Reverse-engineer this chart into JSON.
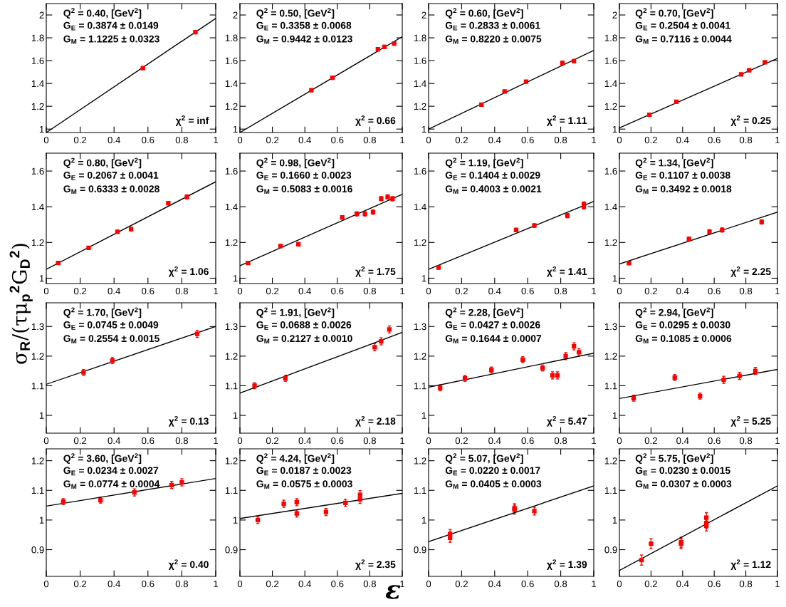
{
  "chart_data": [
    {
      "type": "scatter",
      "ylim": [
        0.97,
        2.1
      ],
      "yticks": [
        1,
        1.2,
        1.4,
        1.6,
        1.8,
        2
      ],
      "xlim": [
        0,
        1
      ],
      "xticks": [
        0,
        0.2,
        0.4,
        0.6,
        0.8,
        1
      ],
      "grid": false,
      "annotations": [
        "Q$^{2}$ = 0.40, [GeV$^{2}$]",
        "G$_{E}$ = 0.3874 ± 0.0149",
        "G$_{M}$ = 1.1225 ± 0.0323",
        "χ$^{2}$ = inf"
      ],
      "series": [
        {
          "marker": "square",
          "color": "#ff0000",
          "x": [
            0.57,
            0.88
          ],
          "values": [
            1.535,
            1.85
          ],
          "errors": [
            0.01,
            0.015
          ]
        },
        {
          "type": "line",
          "color": "#000000",
          "x": [
            0,
            1
          ],
          "values": [
            0.97,
            1.97
          ]
        }
      ]
    },
    {
      "type": "scatter",
      "ylim": [
        0.97,
        2.1
      ],
      "yticks": [
        1,
        1.2,
        1.4,
        1.6,
        1.8,
        2
      ],
      "xlim": [
        0,
        1
      ],
      "xticks": [
        0,
        0.2,
        0.4,
        0.6,
        0.8,
        1
      ],
      "grid": false,
      "annotations": [
        "Q$^{2}$ = 0.50, [GeV$^{2}$]",
        "G$_{E}$ = 0.3358 ± 0.0068",
        "G$_{M}$ = 0.9442 ± 0.0123",
        "χ$^{2}$ = 0.66"
      ],
      "series": [
        {
          "marker": "square",
          "color": "#ff0000",
          "x": [
            0.44,
            0.57,
            0.85,
            0.89,
            0.95
          ],
          "values": [
            1.34,
            1.45,
            1.7,
            1.72,
            1.75
          ],
          "errors": [
            0.01,
            0.01,
            0.015,
            0.015,
            0.015
          ]
        },
        {
          "type": "line",
          "color": "#000000",
          "x": [
            0,
            1
          ],
          "values": [
            0.97,
            1.81
          ]
        }
      ]
    },
    {
      "type": "scatter",
      "ylim": [
        0.97,
        2.1
      ],
      "yticks": [
        1,
        1.2,
        1.4,
        1.6,
        1.8,
        2
      ],
      "xlim": [
        0,
        1
      ],
      "xticks": [
        0,
        0.2,
        0.4,
        0.6,
        0.8,
        1
      ],
      "grid": false,
      "annotations": [
        "Q$^{2}$ = 0.60, [GeV$^{2}$]",
        "G$_{E}$ = 0.2833 ± 0.0061",
        "G$_{M}$ = 0.8220 ± 0.0075",
        "χ$^{2}$ = 1.11"
      ],
      "series": [
        {
          "marker": "square",
          "color": "#ff0000",
          "x": [
            0.32,
            0.46,
            0.59,
            0.81,
            0.88
          ],
          "values": [
            1.215,
            1.33,
            1.415,
            1.58,
            1.595
          ],
          "errors": [
            0.01,
            0.01,
            0.01,
            0.015,
            0.015
          ]
        },
        {
          "type": "line",
          "color": "#000000",
          "x": [
            0,
            1
          ],
          "values": [
            1.0,
            1.69
          ]
        }
      ]
    },
    {
      "type": "scatter",
      "ylim": [
        0.97,
        2.1
      ],
      "yticks": [
        1,
        1.2,
        1.4,
        1.6,
        1.8,
        2
      ],
      "xlim": [
        0,
        1
      ],
      "xticks": [
        0,
        0.2,
        0.4,
        0.6,
        0.8,
        1
      ],
      "grid": false,
      "annotations": [
        "Q$^{2}$ = 0.70, [GeV$^{2}$]",
        "G$_{E}$ = 0.2504 ± 0.0041",
        "G$_{M}$ = 0.7116 ± 0.0044",
        "χ$^{2}$ = 0.25"
      ],
      "series": [
        {
          "marker": "square",
          "color": "#ff0000",
          "x": [
            0.19,
            0.36,
            0.77,
            0.82,
            0.92
          ],
          "values": [
            1.125,
            1.24,
            1.48,
            1.515,
            1.585
          ],
          "errors": [
            0.01,
            0.01,
            0.01,
            0.01,
            0.01
          ]
        },
        {
          "type": "line",
          "color": "#000000",
          "x": [
            0,
            1
          ],
          "values": [
            1.01,
            1.62
          ]
        }
      ]
    },
    {
      "type": "scatter",
      "ylim": [
        0.97,
        1.7
      ],
      "yticks": [
        1,
        1.2,
        1.4,
        1.6
      ],
      "xlim": [
        0,
        1
      ],
      "xticks": [
        0,
        0.2,
        0.4,
        0.6,
        0.8,
        1
      ],
      "grid": false,
      "annotations": [
        "Q$^{2}$ = 0.80, [GeV$^{2}$]",
        "G$_{E}$ = 0.2067 ± 0.0041",
        "G$_{M}$ = 0.6333 ± 0.0028",
        "χ$^{2}$ = 1.06"
      ],
      "series": [
        {
          "marker": "square",
          "color": "#ff0000",
          "x": [
            0.07,
            0.25,
            0.42,
            0.5,
            0.72,
            0.83
          ],
          "values": [
            1.085,
            1.17,
            1.26,
            1.275,
            1.42,
            1.455
          ],
          "errors": [
            0.008,
            0.008,
            0.008,
            0.01,
            0.01,
            0.012
          ]
        },
        {
          "type": "line",
          "color": "#000000",
          "x": [
            0,
            1
          ],
          "values": [
            1.05,
            1.54
          ]
        }
      ]
    },
    {
      "type": "scatter",
      "ylim": [
        0.97,
        1.7
      ],
      "yticks": [
        1,
        1.2,
        1.4,
        1.6
      ],
      "xlim": [
        0,
        1
      ],
      "xticks": [
        0,
        0.2,
        0.4,
        0.6,
        0.8,
        1
      ],
      "grid": false,
      "annotations": [
        "Q$^{2}$ = 0.98, [GeV$^{2}$]",
        "G$_{E}$ = 0.1660 ± 0.0023",
        "G$_{M}$ = 0.5083 ± 0.0016",
        "χ$^{2}$ = 1.75"
      ],
      "series": [
        {
          "marker": "square",
          "color": "#ff0000",
          "x": [
            0.05,
            0.25,
            0.36,
            0.63,
            0.72,
            0.77,
            0.82,
            0.87,
            0.91,
            0.94
          ],
          "values": [
            1.085,
            1.18,
            1.19,
            1.34,
            1.36,
            1.36,
            1.37,
            1.445,
            1.455,
            1.445
          ],
          "errors": [
            0.008,
            0.008,
            0.01,
            0.01,
            0.012,
            0.012,
            0.012,
            0.012,
            0.012,
            0.012
          ]
        },
        {
          "type": "line",
          "color": "#000000",
          "x": [
            0,
            1
          ],
          "values": [
            1.07,
            1.47
          ]
        }
      ]
    },
    {
      "type": "scatter",
      "ylim": [
        0.97,
        1.7
      ],
      "yticks": [
        1,
        1.2,
        1.4,
        1.6
      ],
      "xlim": [
        0,
        1
      ],
      "xticks": [
        0,
        0.2,
        0.4,
        0.6,
        0.8,
        1
      ],
      "grid": false,
      "annotations": [
        "Q$^{2}$ = 1.19, [GeV$^{2}$]",
        "G$_{E}$ = 0.1404 ± 0.0029",
        "G$_{M}$ = 0.4003 ± 0.0021",
        "χ$^{2}$ = 1.41"
      ],
      "series": [
        {
          "marker": "square",
          "color": "#ff0000",
          "x": [
            0.06,
            0.53,
            0.64,
            0.84,
            0.94,
            0.94
          ],
          "values": [
            1.06,
            1.27,
            1.295,
            1.35,
            1.4,
            1.415
          ],
          "errors": [
            0.01,
            0.01,
            0.01,
            0.012,
            0.012,
            0.012
          ]
        },
        {
          "type": "line",
          "color": "#000000",
          "x": [
            0,
            1
          ],
          "values": [
            1.05,
            1.43
          ]
        }
      ]
    },
    {
      "type": "scatter",
      "ylim": [
        0.97,
        1.7
      ],
      "yticks": [
        1,
        1.2,
        1.4,
        1.6
      ],
      "xlim": [
        0,
        1
      ],
      "xticks": [
        0,
        0.2,
        0.4,
        0.6,
        0.8,
        1
      ],
      "grid": false,
      "annotations": [
        "Q$^{2}$ = 1.34, [GeV$^{2}$]",
        "G$_{E}$ = 0.1107 ± 0.0038",
        "G$_{M}$ = 0.3492 ± 0.0018",
        "χ$^{2}$ = 2.25"
      ],
      "series": [
        {
          "marker": "square",
          "color": "#ff0000",
          "x": [
            0.06,
            0.44,
            0.57,
            0.65,
            0.9
          ],
          "values": [
            1.085,
            1.22,
            1.26,
            1.27,
            1.315
          ],
          "errors": [
            0.01,
            0.01,
            0.012,
            0.012,
            0.012
          ]
        },
        {
          "type": "line",
          "color": "#000000",
          "x": [
            0,
            1
          ],
          "values": [
            1.08,
            1.37
          ]
        }
      ]
    },
    {
      "type": "scatter",
      "ylim": [
        0.94,
        1.38
      ],
      "yticks": [
        1,
        1.1,
        1.2,
        1.3
      ],
      "xlim": [
        0,
        1
      ],
      "xticks": [
        0,
        0.2,
        0.4,
        0.6,
        0.8,
        1
      ],
      "grid": false,
      "ylabel": "σ$_{R}$/(τμ$_{p}$$^{2}$G$_{D}$$^{2}$)",
      "annotations": [
        "Q$^{2}$ = 1.70, [GeV$^{2}$]",
        "G$_{E}$ = 0.0745 ± 0.0049",
        "G$_{M}$ = 0.2554 ± 0.0015",
        "χ$^{2}$ = 0.13"
      ],
      "series": [
        {
          "marker": "square",
          "color": "#ff0000",
          "x": [
            0.22,
            0.39,
            0.89
          ],
          "values": [
            1.145,
            1.185,
            1.275
          ],
          "errors": [
            0.01,
            0.01,
            0.012
          ]
        },
        {
          "type": "line",
          "color": "#000000",
          "x": [
            0,
            1
          ],
          "values": [
            1.105,
            1.3
          ]
        }
      ]
    },
    {
      "type": "scatter",
      "ylim": [
        0.94,
        1.38
      ],
      "yticks": [
        1,
        1.1,
        1.2,
        1.3
      ],
      "xlim": [
        0,
        1
      ],
      "xticks": [
        0,
        0.2,
        0.4,
        0.6,
        0.8,
        1
      ],
      "grid": false,
      "annotations": [
        "Q$^{2}$ = 1.91, [GeV$^{2}$]",
        "G$_{E}$ = 0.0688 ± 0.0026",
        "G$_{M}$ = 0.2127 ± 0.0010",
        "χ$^{2}$ = 2.18"
      ],
      "series": [
        {
          "marker": "square",
          "color": "#ff0000",
          "x": [
            0.09,
            0.28,
            0.83,
            0.87,
            0.92
          ],
          "values": [
            1.1,
            1.125,
            1.23,
            1.25,
            1.29
          ],
          "errors": [
            0.01,
            0.01,
            0.012,
            0.012,
            0.012
          ]
        },
        {
          "type": "line",
          "color": "#000000",
          "x": [
            0,
            1
          ],
          "values": [
            1.075,
            1.28
          ]
        }
      ]
    },
    {
      "type": "scatter",
      "ylim": [
        0.94,
        1.38
      ],
      "yticks": [
        1,
        1.1,
        1.2,
        1.3
      ],
      "xlim": [
        0,
        1
      ],
      "xticks": [
        0,
        0.2,
        0.4,
        0.6,
        0.8,
        1
      ],
      "grid": false,
      "annotations": [
        "Q$^{2}$ = 2.28, [GeV$^{2}$]",
        "G$_{E}$ = 0.0427 ± 0.0026",
        "G$_{M}$ = 0.1644 ± 0.0007",
        "χ$^{2}$ = 5.47"
      ],
      "series": [
        {
          "marker": "square",
          "color": "#ff0000",
          "x": [
            0.07,
            0.22,
            0.38,
            0.57,
            0.69,
            0.75,
            0.78,
            0.83,
            0.88,
            0.91
          ],
          "values": [
            1.093,
            1.125,
            1.153,
            1.188,
            1.16,
            1.135,
            1.135,
            1.2,
            1.233,
            1.213
          ],
          "errors": [
            0.01,
            0.01,
            0.01,
            0.01,
            0.01,
            0.012,
            0.012,
            0.012,
            0.012,
            0.012
          ]
        },
        {
          "type": "line",
          "color": "#000000",
          "x": [
            0,
            1
          ],
          "values": [
            1.095,
            1.21
          ]
        }
      ]
    },
    {
      "type": "scatter",
      "ylim": [
        0.94,
        1.38
      ],
      "yticks": [
        1,
        1.1,
        1.2,
        1.3
      ],
      "xlim": [
        0,
        1
      ],
      "xticks": [
        0,
        0.2,
        0.4,
        0.6,
        0.8,
        1
      ],
      "grid": false,
      "annotations": [
        "Q$^{2}$ = 2.94, [GeV$^{2}$]",
        "G$_{E}$ = 0.0295 ± 0.0030",
        "G$_{M}$ = 0.1085 ± 0.0006",
        "χ$^{2}$ = 5.25"
      ],
      "series": [
        {
          "marker": "square",
          "color": "#ff0000",
          "x": [
            0.09,
            0.35,
            0.51,
            0.66,
            0.76,
            0.86
          ],
          "values": [
            1.058,
            1.128,
            1.065,
            1.12,
            1.133,
            1.15
          ],
          "errors": [
            0.01,
            0.01,
            0.01,
            0.012,
            0.012,
            0.012
          ]
        },
        {
          "type": "line",
          "color": "#000000",
          "x": [
            0,
            1
          ],
          "values": [
            1.057,
            1.155
          ]
        }
      ]
    },
    {
      "type": "scatter",
      "ylim": [
        0.81,
        1.24
      ],
      "yticks": [
        0.9,
        1,
        1.1,
        1.2
      ],
      "xlim": [
        0,
        1
      ],
      "xticks": [
        0,
        0.2,
        0.4,
        0.6,
        0.8,
        1
      ],
      "grid": false,
      "annotations": [
        "Q$^{2}$ = 3.60, [GeV$^{2}$]",
        "G$_{E}$ = 0.0234 ± 0.0027",
        "G$_{M}$ = 0.0774 ± 0.0004",
        "χ$^{2}$ = 0.40"
      ],
      "series": [
        {
          "marker": "square",
          "color": "#ff0000",
          "x": [
            0.1,
            0.32,
            0.52,
            0.74,
            0.8
          ],
          "values": [
            1.062,
            1.067,
            1.093,
            1.118,
            1.127
          ],
          "errors": [
            0.01,
            0.01,
            0.012,
            0.012,
            0.012
          ]
        },
        {
          "type": "line",
          "color": "#000000",
          "x": [
            0,
            1
          ],
          "values": [
            1.047,
            1.14
          ]
        }
      ]
    },
    {
      "type": "scatter",
      "ylim": [
        0.81,
        1.24
      ],
      "yticks": [
        0.9,
        1,
        1.1,
        1.2
      ],
      "xlim": [
        0,
        1
      ],
      "xticks": [
        0,
        0.2,
        0.4,
        0.6,
        0.8,
        1
      ],
      "grid": false,
      "xlabel": "ε",
      "annotations": [
        "Q$^{2}$ = 4.24, [GeV$^{2}$]",
        "G$_{E}$ = 0.0187 ± 0.0023",
        "G$_{M}$ = 0.0575 ± 0.0003",
        "χ$^{2}$ = 2.35"
      ],
      "series": [
        {
          "marker": "square",
          "color": "#ff0000",
          "x": [
            0.11,
            0.27,
            0.35,
            0.35,
            0.53,
            0.65,
            0.74,
            0.74
          ],
          "values": [
            1.0,
            1.055,
            1.06,
            1.022,
            1.027,
            1.058,
            1.085,
            1.07
          ],
          "errors": [
            0.012,
            0.012,
            0.012,
            0.012,
            0.012,
            0.012,
            0.014,
            0.014
          ]
        },
        {
          "type": "line",
          "color": "#000000",
          "x": [
            0,
            1
          ],
          "values": [
            1.005,
            1.09
          ]
        }
      ]
    },
    {
      "type": "scatter",
      "ylim": [
        0.81,
        1.24
      ],
      "yticks": [
        0.9,
        1,
        1.1,
        1.2
      ],
      "xlim": [
        0,
        1
      ],
      "xticks": [
        0,
        0.2,
        0.4,
        0.6,
        0.8,
        1
      ],
      "grid": false,
      "annotations": [
        "Q$^{2}$ = 5.07, [GeV$^{2}$]",
        "G$_{E}$ = 0.0220 ± 0.0017",
        "G$_{M}$ = 0.0405 ± 0.0003",
        "χ$^{2}$ = 1.39"
      ],
      "series": [
        {
          "marker": "square",
          "color": "#ff0000",
          "x": [
            0.13,
            0.13,
            0.52,
            0.52,
            0.64
          ],
          "values": [
            0.953,
            0.94,
            1.04,
            1.035,
            1.03
          ],
          "errors": [
            0.015,
            0.015,
            0.015,
            0.015,
            0.013
          ]
        },
        {
          "type": "line",
          "color": "#000000",
          "x": [
            0,
            1
          ],
          "values": [
            0.927,
            1.115
          ]
        }
      ]
    },
    {
      "type": "scatter",
      "ylim": [
        0.81,
        1.24
      ],
      "yticks": [
        0.9,
        1,
        1.1,
        1.2
      ],
      "xlim": [
        0,
        1
      ],
      "xticks": [
        0,
        0.2,
        0.4,
        0.6,
        0.8,
        1
      ],
      "grid": false,
      "annotations": [
        "Q$^{2}$ = 5.75, [GeV$^{2}$]",
        "G$_{E}$ = 0.0230 ± 0.0015",
        "G$_{M}$ = 0.0307 ± 0.0003",
        "χ$^{2}$ = 1.12"
      ],
      "series": [
        {
          "marker": "square",
          "color": "#ff0000",
          "x": [
            0.14,
            0.2,
            0.39,
            0.39,
            0.55,
            0.55,
            0.55
          ],
          "values": [
            0.865,
            0.92,
            0.925,
            0.92,
            1.008,
            0.99,
            0.98
          ],
          "errors": [
            0.017,
            0.017,
            0.017,
            0.017,
            0.017,
            0.017,
            0.017
          ]
        },
        {
          "type": "line",
          "color": "#000000",
          "x": [
            0,
            1
          ],
          "values": [
            0.83,
            1.115
          ]
        }
      ]
    }
  ]
}
